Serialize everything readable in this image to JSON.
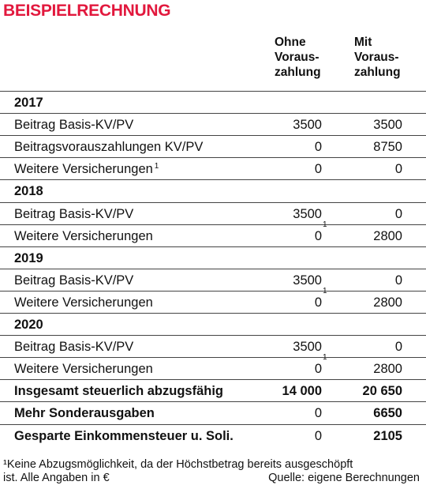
{
  "title": "BEISPIELRECHNUNG",
  "columns": [
    [
      "Ohne",
      "Voraus-",
      "zahlung"
    ],
    [
      "Mit",
      "Voraus-",
      "zahlung"
    ]
  ],
  "sections": [
    {
      "year": "2017",
      "rows": [
        {
          "label": "Beitrag Basis-KV/PV",
          "values": [
            {
              "text": "3500"
            },
            {
              "text": "3500"
            }
          ]
        },
        {
          "label": "Beitragsvorauszahlungen KV/PV",
          "values": [
            {
              "text": "0"
            },
            {
              "text": "8750"
            }
          ]
        },
        {
          "label": "Weitere Versicherungen",
          "label_note": "1",
          "values": [
            {
              "text": "0"
            },
            {
              "text": "0"
            }
          ]
        }
      ]
    },
    {
      "year": "2018",
      "rows": [
        {
          "label": "Beitrag Basis-KV/PV",
          "values": [
            {
              "text": "3500"
            },
            {
              "text": "0"
            }
          ]
        },
        {
          "label": "Weitere Versicherungen",
          "values": [
            {
              "text": "0",
              "note": "1"
            },
            {
              "text": "2800"
            }
          ]
        }
      ]
    },
    {
      "year": "2019",
      "rows": [
        {
          "label": "Beitrag Basis-KV/PV",
          "values": [
            {
              "text": "3500"
            },
            {
              "text": "0"
            }
          ]
        },
        {
          "label": "Weitere Versicherungen",
          "values": [
            {
              "text": "0",
              "note": "1"
            },
            {
              "text": "2800"
            }
          ]
        }
      ]
    },
    {
      "year": "2020",
      "rows": [
        {
          "label": "Beitrag Basis-KV/PV",
          "values": [
            {
              "text": "3500"
            },
            {
              "text": "0"
            }
          ]
        },
        {
          "label": "Weitere Versicherungen",
          "values": [
            {
              "text": "0",
              "note": "1"
            },
            {
              "text": "2800"
            }
          ]
        }
      ]
    }
  ],
  "summary": [
    {
      "label": "Insgesamt steuerlich abzugsfähig",
      "values": [
        "14 000",
        "20 650"
      ]
    },
    {
      "label": "Mehr Sonderausgaben",
      "values": [
        "0",
        "6650"
      ]
    },
    {
      "label": "Gesparte Einkommensteuer u. Soli.",
      "values": [
        "0",
        "2105"
      ]
    }
  ],
  "footnote": [
    "¹Keine Abzugsmöglichkeit, da der Höchstbetrag bereits ausgeschöpft",
    "ist. Alle Angaben in €"
  ],
  "source": "Quelle: eigene Berechnungen"
}
